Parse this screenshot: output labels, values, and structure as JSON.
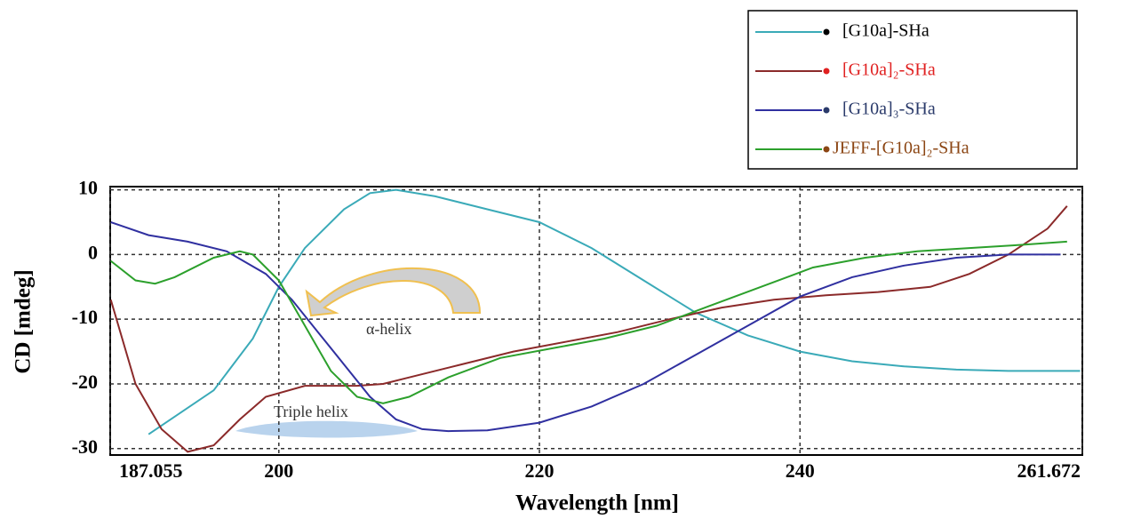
{
  "chart_data": {
    "type": "line",
    "x_label": "Wavelength [nm]",
    "y_label": "CD [mdeg]",
    "xlim": [
      187.055,
      261.672
    ],
    "xticks": [
      187.055,
      200,
      220,
      240,
      261.672
    ],
    "ylim": [
      -31,
      10.5
    ],
    "yticks": [
      -30,
      -20,
      -10,
      0,
      10
    ],
    "grid": true,
    "annotations": [
      "α-helix",
      "Triple helix"
    ],
    "series": [
      {
        "name": "[G10a]-SHa",
        "color": "#3aaab8",
        "label_color": "#000000",
        "x": [
          190,
          195,
          198,
          200,
          202,
          205,
          207,
          209,
          212,
          216,
          220,
          224,
          228,
          232,
          236,
          240,
          244,
          248,
          252,
          256,
          261.5
        ],
        "values": [
          -27.8,
          -21,
          -13,
          -5,
          1,
          7,
          9.5,
          10,
          9,
          7,
          5,
          1,
          -4,
          -9,
          -12.5,
          -15,
          -16.5,
          -17.3,
          -17.8,
          -18,
          -18
        ]
      },
      {
        "name": "[G10a]₂-SHa",
        "color": "#8b2a2a",
        "label_color": "#e02020",
        "x": [
          187.1,
          189,
          191,
          193,
          195,
          197,
          199,
          202,
          206,
          208,
          210,
          214,
          218,
          222,
          226,
          230,
          234,
          238,
          242,
          246,
          250,
          253,
          256,
          259,
          260.5
        ],
        "values": [
          -7,
          -20,
          -27,
          -30.5,
          -29.5,
          -25.5,
          -22,
          -20.3,
          -20.3,
          -20,
          -19,
          -17,
          -15,
          -13.5,
          -12,
          -10,
          -8.2,
          -7,
          -6.3,
          -5.8,
          -5,
          -3,
          0,
          4,
          7.5
        ]
      },
      {
        "name": "[G10a]₃-SHa",
        "color": "#3030a0",
        "label_color": "#2a3a6a",
        "x": [
          187.1,
          190,
          193,
          196,
          199,
          201,
          203,
          205,
          207,
          209,
          211,
          213,
          216,
          220,
          224,
          228,
          232,
          236,
          240,
          244,
          248,
          252,
          256,
          260
        ],
        "values": [
          5,
          3,
          2,
          0.5,
          -3,
          -7,
          -12,
          -17,
          -22,
          -25.5,
          -27,
          -27.3,
          -27.2,
          -26,
          -23.5,
          -20,
          -15.5,
          -11,
          -6.5,
          -3.5,
          -1.7,
          -0.5,
          0,
          0
        ]
      },
      {
        "name": "JEFF-[G10a]₂-SHa",
        "color": "#2ca02c",
        "label_color": "#8b4513",
        "x": [
          187.1,
          189,
          190.5,
          192,
          195,
          197,
          198,
          200,
          202,
          204,
          206,
          208,
          210,
          213,
          217,
          221,
          225,
          229,
          233,
          237,
          241,
          245,
          249,
          253,
          257,
          260.5
        ],
        "values": [
          -1,
          -4,
          -4.5,
          -3.5,
          -0.5,
          0.5,
          0,
          -4,
          -11,
          -18,
          -22,
          -23,
          -22,
          -19,
          -16,
          -14.5,
          -13,
          -11,
          -8,
          -5,
          -2,
          -0.5,
          0.5,
          1,
          1.5,
          2
        ]
      }
    ]
  }
}
